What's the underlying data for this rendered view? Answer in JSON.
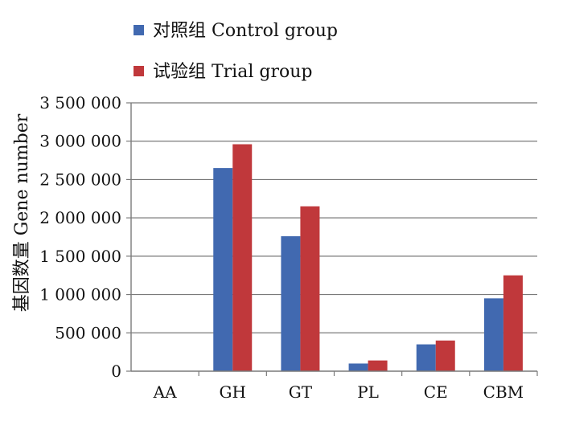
{
  "chart_data": {
    "type": "bar",
    "categories": [
      "AA",
      "GH",
      "GT",
      "PL",
      "CE",
      "CBM"
    ],
    "series": [
      {
        "name": "对照组  Control group",
        "color": "#4169b0",
        "values": [
          0,
          2650000,
          1760000,
          100000,
          350000,
          950000
        ]
      },
      {
        "name": "试验组 Trial group",
        "color": "#c0383b",
        "values": [
          0,
          2960000,
          2150000,
          140000,
          400000,
          1250000
        ]
      }
    ],
    "ylabel": "基因数量  Gene number",
    "ylim": [
      0,
      3500000
    ],
    "yticks": [
      0,
      500000,
      1000000,
      1500000,
      2000000,
      2500000,
      3000000,
      3500000
    ],
    "ytick_labels": [
      "0",
      "500 000",
      "1 000 000",
      "1 500 000",
      "2 000 000",
      "2 500 000",
      "3 000 000",
      "3 500 000"
    ],
    "grid": true,
    "legend_position": "top-left"
  }
}
